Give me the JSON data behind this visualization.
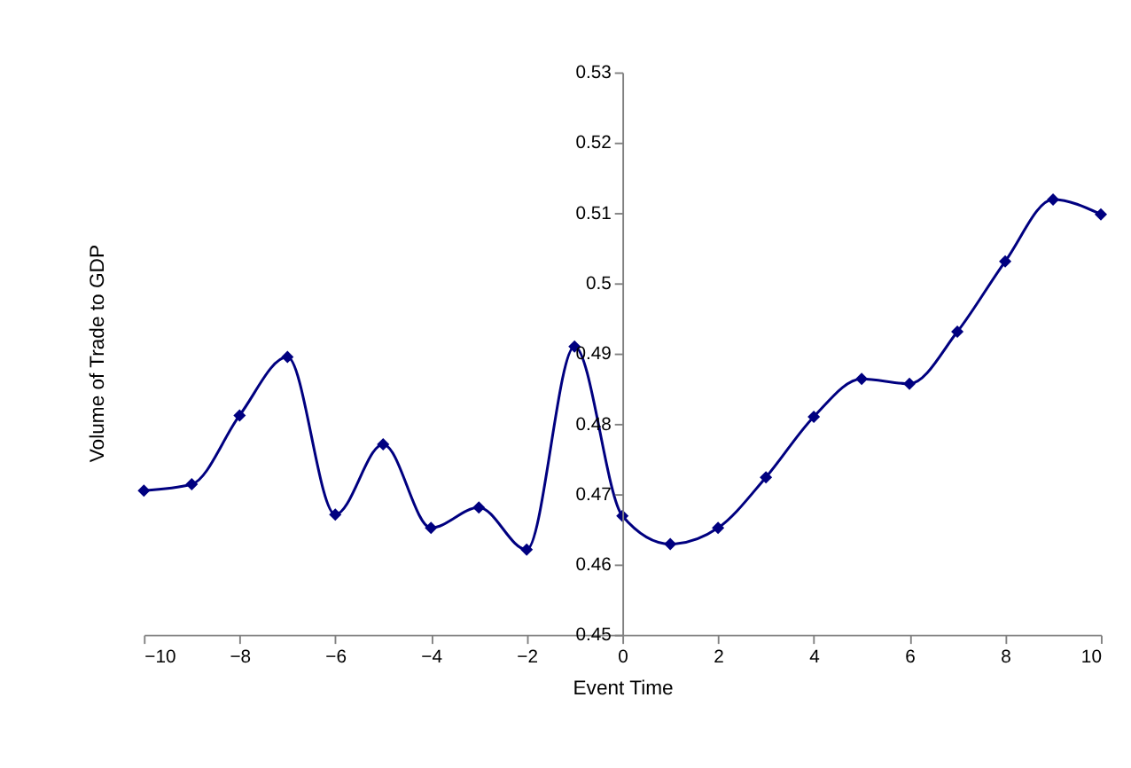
{
  "chart_data": {
    "type": "line",
    "xlabel": "Event Time",
    "ylabel": "Volume of Trade to GDP",
    "x": [
      -10,
      -9,
      -8,
      -7,
      -6,
      -5,
      -4,
      -3,
      -2,
      -1,
      0,
      1,
      2,
      3,
      4,
      5,
      6,
      7,
      8,
      9,
      10
    ],
    "series": [
      {
        "color": "#000080",
        "values": [
          0.4705,
          0.4714,
          0.4812,
          0.4895,
          0.4671,
          0.4771,
          0.4652,
          0.4681,
          0.4621,
          0.491,
          0.4669,
          0.4629,
          0.4652,
          0.4724,
          0.481,
          0.4864,
          0.4857,
          0.4931,
          0.5031,
          0.5119,
          0.5098
        ]
      }
    ],
    "xlim": [
      -10,
      10
    ],
    "xticks": [
      -10,
      -8,
      -6,
      -4,
      -2,
      0,
      2,
      4,
      6,
      8,
      10
    ],
    "ylim": [
      0.45,
      0.53
    ],
    "yticks": [
      0.45,
      0.46,
      0.47,
      0.48,
      0.49,
      0.5,
      0.51,
      0.52,
      0.53
    ],
    "marker": "diamond",
    "line_style": "solid",
    "grid": false
  }
}
